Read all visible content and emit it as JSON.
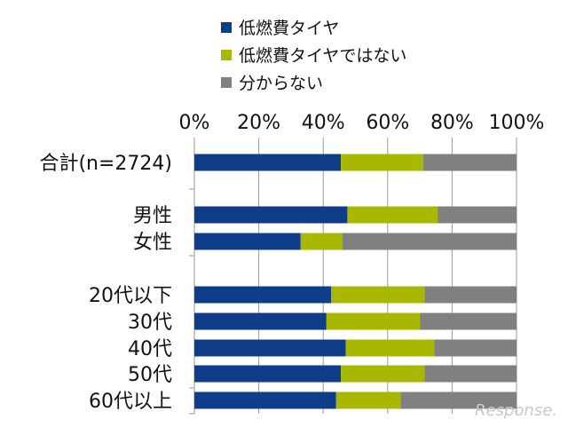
{
  "chart_data": {
    "type": "bar",
    "orientation": "horizontal",
    "stacked": "percent",
    "categories": [
      "合計(n=2724)",
      "男性",
      "女性",
      "20代以下",
      "30代",
      "40代",
      "50代",
      "60代以上"
    ],
    "series": [
      {
        "name": "低燃費タイヤ",
        "color": "#0f3d8a",
        "values": [
          45.5,
          47.5,
          33.0,
          42.5,
          41.0,
          47.0,
          45.5,
          44.0
        ]
      },
      {
        "name": "低燃費タイヤではない",
        "color": "#a8b800",
        "values": [
          25.5,
          28.0,
          13.0,
          29.0,
          29.0,
          27.5,
          26.0,
          20.0
        ]
      },
      {
        "name": "分からない",
        "color": "#808080",
        "values": [
          29.0,
          24.5,
          54.0,
          28.5,
          30.0,
          25.5,
          28.5,
          36.0
        ]
      }
    ],
    "x_ticks": [
      "0%",
      "20%",
      "40%",
      "60%",
      "80%",
      "100%"
    ],
    "xlim": [
      0,
      100
    ],
    "legend_position": "top",
    "watermark": "Response."
  }
}
